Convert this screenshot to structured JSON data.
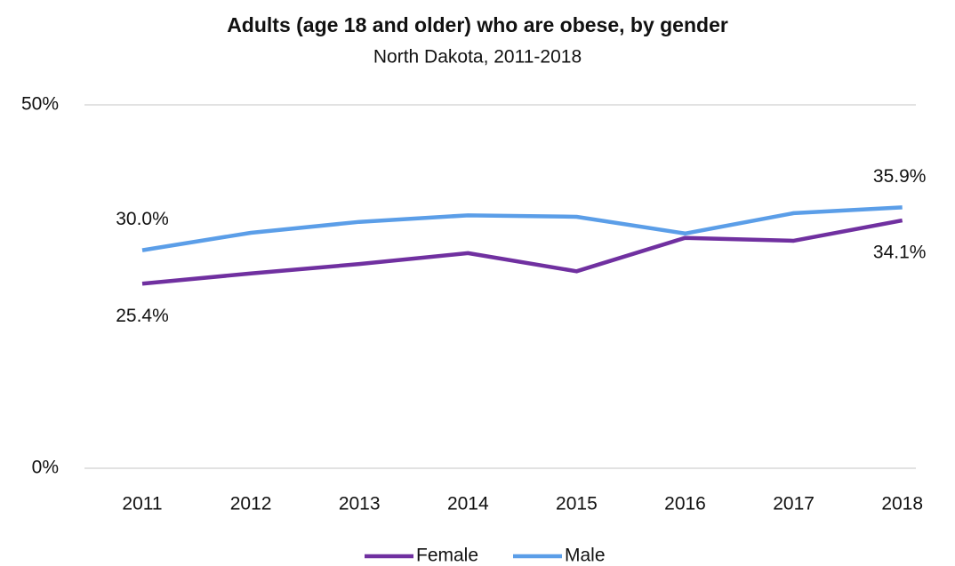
{
  "chart_data": {
    "type": "line",
    "title": "Adults (age 18 and older) who are obese, by gender",
    "subtitle": "North Dakota, 2011-2018",
    "categories": [
      "2011",
      "2012",
      "2013",
      "2014",
      "2015",
      "2016",
      "2017",
      "2018"
    ],
    "series": [
      {
        "name": "Female",
        "color": "#7030a0",
        "values": [
          25.4,
          26.8,
          28.1,
          29.6,
          27.1,
          31.7,
          31.3,
          34.1
        ],
        "value_labels": [
          "25.4%",
          null,
          null,
          null,
          null,
          null,
          null,
          "34.1%"
        ]
      },
      {
        "name": "Male",
        "color": "#5b9ee8",
        "values": [
          30.0,
          32.4,
          33.9,
          34.8,
          34.6,
          32.3,
          35.1,
          35.9
        ],
        "value_labels": [
          "30.0%",
          null,
          null,
          null,
          null,
          null,
          null,
          "35.9%"
        ]
      }
    ],
    "ylim": [
      0,
      50
    ],
    "yticks": [
      {
        "value": 0,
        "label": "0%"
      },
      {
        "value": 50,
        "label": "50%"
      }
    ],
    "grid": true,
    "legend": "bottom"
  }
}
